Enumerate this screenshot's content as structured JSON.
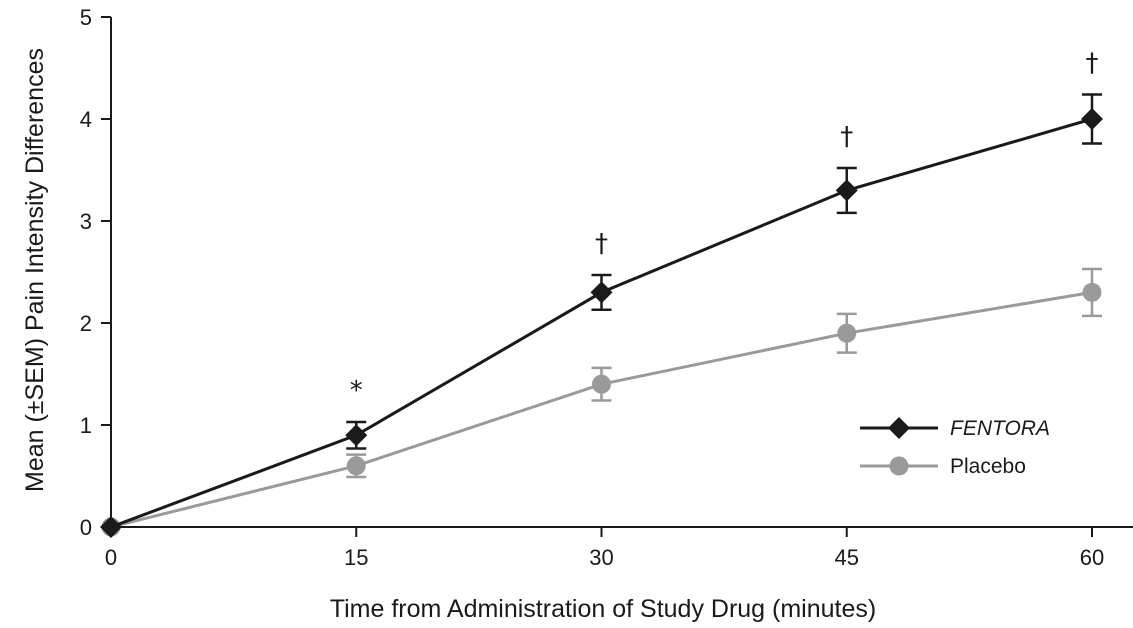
{
  "chart_data": {
    "type": "line",
    "title": "",
    "xlabel": "Time from Administration of Study Drug (minutes)",
    "ylabel": "Mean (±SEM) Pain Intensity Differences",
    "x": [
      0,
      15,
      30,
      45,
      60
    ],
    "x_tick_labels": [
      "0",
      "15",
      "30",
      "45",
      "60"
    ],
    "y_tick_labels": [
      "0",
      "1",
      "2",
      "3",
      "4",
      "5"
    ],
    "xlim": [
      0,
      60
    ],
    "ylim": [
      0,
      5
    ],
    "grid": false,
    "legend_position": "right",
    "series": [
      {
        "name": "FENTORA",
        "marker": "diamond",
        "color": "#1a1a1a",
        "values": [
          0,
          0.9,
          2.3,
          3.3,
          4.0
        ],
        "error": [
          0,
          0.13,
          0.17,
          0.22,
          0.24
        ]
      },
      {
        "name": "Placebo",
        "marker": "circle",
        "color": "#9a9a9a",
        "values": [
          0,
          0.6,
          1.4,
          1.9,
          2.3
        ],
        "error": [
          0,
          0.11,
          0.16,
          0.19,
          0.23
        ]
      }
    ],
    "annotations": [
      {
        "x": 15,
        "text": "*"
      },
      {
        "x": 30,
        "text": "†"
      },
      {
        "x": 45,
        "text": "†"
      },
      {
        "x": 60,
        "text": "†"
      }
    ]
  }
}
